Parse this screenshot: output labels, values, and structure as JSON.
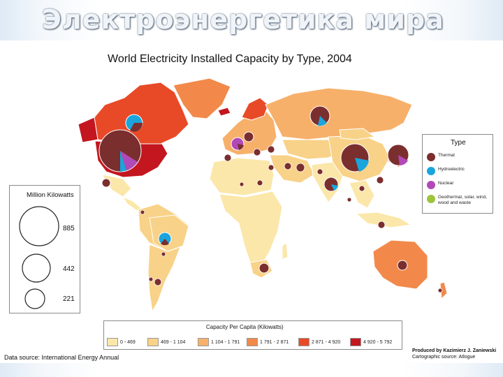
{
  "slide_title": "Электроэнергетика мира",
  "map_title": "World Electricity Installed Capacity by Type, 2004",
  "type_legend": {
    "title": "Type",
    "items": [
      {
        "label": "Thermal",
        "color": "#7b2e2e"
      },
      {
        "label": "Hydroelectric",
        "color": "#1aa5dc"
      },
      {
        "label": "Nuclear",
        "color": "#b249b8"
      },
      {
        "label": "Geothermal, solar, wind, wood and waste",
        "color": "#9dc43a"
      }
    ]
  },
  "size_legend": {
    "title": "Million Kilowatts",
    "values": [
      "885",
      "442",
      "221"
    ]
  },
  "capacity_legend": {
    "title": "Capacity Per Capita (Kilowatts)",
    "classes": [
      {
        "label": "0 - 469",
        "color": "#fbe7a9"
      },
      {
        "label": "469 - 1 104",
        "color": "#f8d288"
      },
      {
        "label": "1 104 - 1 791",
        "color": "#f7b06a"
      },
      {
        "label": "1 791 - 2 871",
        "color": "#f2894a"
      },
      {
        "label": "2 871 - 4 920",
        "color": "#e84a28"
      },
      {
        "label": "4 920 - 5 792",
        "color": "#c3161f"
      }
    ]
  },
  "source_left": "Data source: International Energy Annual",
  "credit": {
    "produced": "Produced by Kazimierz J. Zaniewski",
    "cartographic": "Cartographic source: Atlogue"
  }
}
